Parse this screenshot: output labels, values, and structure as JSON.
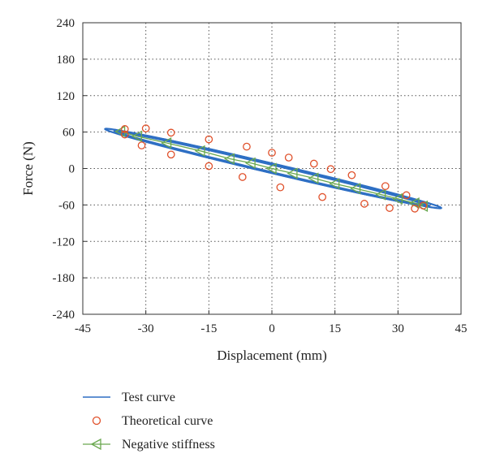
{
  "chart_data": {
    "type": "line",
    "title": "",
    "xlabel": "Displacement (mm)",
    "ylabel": "Force (N)",
    "xlim": [
      -45,
      45
    ],
    "ylim": [
      -240,
      240
    ],
    "xticks": [
      -45,
      -30,
      -15,
      0,
      15,
      30,
      45
    ],
    "yticks": [
      240,
      180,
      120,
      60,
      0,
      -60,
      -120,
      -180,
      -240
    ],
    "xtick_labels": [
      "-45",
      "-30",
      "-15",
      "0",
      "15",
      "30",
      "45"
    ],
    "ytick_labels": [
      "240",
      "180",
      "120",
      "60",
      "0",
      "-60",
      "-120",
      "-180",
      "-240"
    ],
    "grid": "dotted",
    "legend_position": "below-left",
    "series": [
      {
        "name": "Test curve",
        "style": "line",
        "color": "#2e6fc4",
        "loops": [
          {
            "cx": 0.3,
            "cy": 0,
            "ax": 40,
            "ay": 65,
            "sy": 8
          },
          {
            "cx": 0,
            "cy": 0,
            "ax": 37.5,
            "ay": 62,
            "sy": 7
          },
          {
            "cx": 0,
            "cy": 0,
            "ax": 37,
            "ay": 61,
            "sy": 6.5
          },
          {
            "cx": 0,
            "cy": 0,
            "ax": 36.5,
            "ay": 60,
            "sy": 7.5
          },
          {
            "cx": 0,
            "cy": 0,
            "ax": 36,
            "ay": 59,
            "sy": 6
          },
          {
            "cx": 0.2,
            "cy": 0,
            "ax": 36.8,
            "ay": 60.5,
            "sy": 8
          }
        ]
      },
      {
        "name": "Theoretical curve",
        "style": "marker-circle",
        "color": "#e0502a",
        "points": [
          [
            -35,
            65
          ],
          [
            -30,
            66
          ],
          [
            -24,
            59
          ],
          [
            -15,
            48
          ],
          [
            -6,
            36
          ],
          [
            0,
            26
          ],
          [
            4,
            18
          ],
          [
            10,
            8
          ],
          [
            14,
            -1
          ],
          [
            19,
            -11
          ],
          [
            27,
            -29
          ],
          [
            32,
            -44
          ],
          [
            36,
            -61
          ],
          [
            -35,
            56
          ],
          [
            -31,
            38
          ],
          [
            -24,
            23
          ],
          [
            -15,
            4
          ],
          [
            -7,
            -14
          ],
          [
            2,
            -31
          ],
          [
            12,
            -47
          ],
          [
            22,
            -58
          ],
          [
            28,
            -65
          ],
          [
            34,
            -66
          ]
        ]
      },
      {
        "name": "Negative stiffness",
        "style": "line-marker-triangle-left",
        "color": "#6aa84f",
        "points": [
          [
            -36,
            61
          ],
          [
            -32,
            53
          ],
          [
            -25,
            42
          ],
          [
            -17,
            29
          ],
          [
            -10,
            16
          ],
          [
            -5,
            9
          ],
          [
            0,
            0
          ],
          [
            5,
            -8
          ],
          [
            10,
            -16
          ],
          [
            15,
            -25
          ],
          [
            20,
            -33
          ],
          [
            26,
            -43
          ],
          [
            30,
            -50
          ],
          [
            34,
            -57
          ],
          [
            36,
            -62
          ]
        ]
      }
    ]
  }
}
